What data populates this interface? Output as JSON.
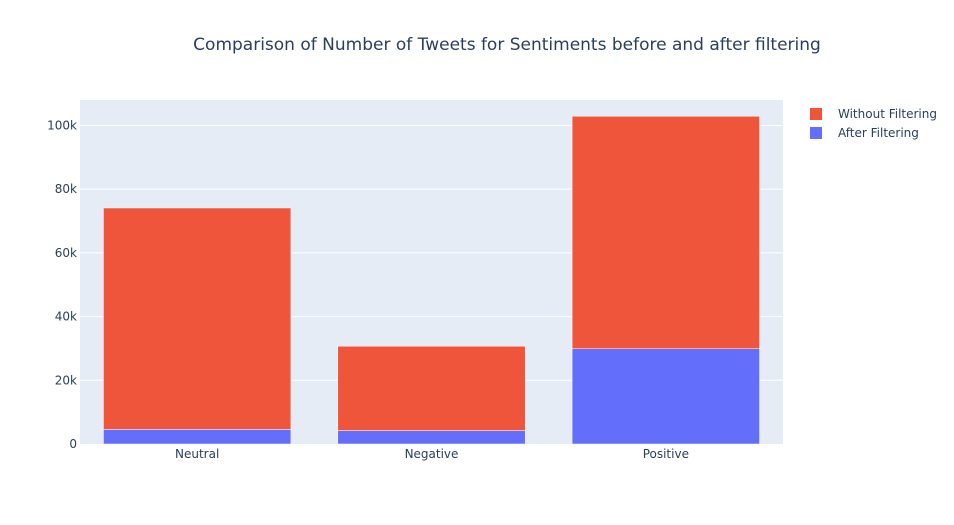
{
  "chart_data": {
    "type": "bar",
    "barmode": "stack",
    "title": "Comparison of Number of Tweets for Sentiments before and after filtering",
    "categories": [
      "Neutral",
      "Negative",
      "Positive"
    ],
    "series": [
      {
        "name": "After Filtering",
        "values": [
          4600,
          4200,
          29900
        ],
        "color": "#636efa"
      },
      {
        "name": "Without Filtering",
        "values": [
          69500,
          26500,
          73000
        ],
        "color": "#ef553b"
      }
    ],
    "legend": [
      "Without Filtering",
      "After Filtering"
    ],
    "legend_position": "top-right",
    "ylim": [
      0,
      108000
    ],
    "yticks": [
      0,
      20000,
      40000,
      60000,
      80000,
      100000
    ],
    "ytick_labels": [
      "0",
      "20k",
      "40k",
      "60k",
      "80k",
      "100k"
    ],
    "grid": true,
    "plot_bg": "#e5ecf6"
  }
}
